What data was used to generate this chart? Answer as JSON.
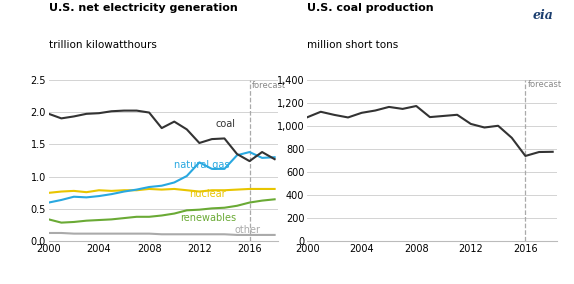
{
  "left_title1": "U.S. net electricity generation",
  "left_title2": "trillion kilowatthours",
  "right_title1": "U.S. coal production",
  "right_title2": "million short tons",
  "years": [
    2000,
    2001,
    2002,
    2003,
    2004,
    2005,
    2006,
    2007,
    2008,
    2009,
    2010,
    2011,
    2012,
    2013,
    2014,
    2015,
    2016,
    2017,
    2018
  ],
  "forecast_year": 2016,
  "left_ylim": [
    0,
    2.5
  ],
  "left_yticks": [
    0.0,
    0.5,
    1.0,
    1.5,
    2.0,
    2.5
  ],
  "right_ylim": [
    0,
    1400
  ],
  "right_yticks": [
    0,
    200,
    400,
    600,
    800,
    1000,
    1200,
    1400
  ],
  "coal_gen": [
    1.97,
    1.9,
    1.93,
    1.97,
    1.98,
    2.01,
    2.02,
    2.02,
    1.99,
    1.75,
    1.85,
    1.73,
    1.52,
    1.58,
    1.59,
    1.35,
    1.24,
    1.38,
    1.27
  ],
  "natural_gas_gen": [
    0.6,
    0.64,
    0.69,
    0.68,
    0.7,
    0.73,
    0.77,
    0.8,
    0.84,
    0.86,
    0.91,
    1.01,
    1.22,
    1.12,
    1.12,
    1.33,
    1.38,
    1.29,
    1.3
  ],
  "nuclear_gen": [
    0.75,
    0.77,
    0.78,
    0.76,
    0.79,
    0.78,
    0.79,
    0.79,
    0.81,
    0.8,
    0.81,
    0.79,
    0.77,
    0.79,
    0.79,
    0.8,
    0.81,
    0.81,
    0.81
  ],
  "renewables_gen": [
    0.34,
    0.29,
    0.3,
    0.32,
    0.33,
    0.34,
    0.36,
    0.38,
    0.38,
    0.4,
    0.43,
    0.48,
    0.49,
    0.51,
    0.52,
    0.55,
    0.6,
    0.63,
    0.65
  ],
  "other_gen": [
    0.13,
    0.13,
    0.12,
    0.12,
    0.12,
    0.12,
    0.12,
    0.12,
    0.12,
    0.11,
    0.11,
    0.11,
    0.11,
    0.11,
    0.11,
    0.1,
    0.1,
    0.1,
    0.1
  ],
  "coal_prod": [
    1073,
    1121,
    1094,
    1072,
    1112,
    1132,
    1163,
    1146,
    1171,
    1075,
    1085,
    1095,
    1016,
    985,
    1000,
    896,
    739,
    773,
    775
  ],
  "coal_gen_color": "#333333",
  "natural_gas_color": "#29a8e0",
  "nuclear_color": "#e8c500",
  "renewables_color": "#6aaa35",
  "other_color": "#aaaaaa",
  "coal_prod_color": "#333333",
  "forecast_line_color": "#aaaaaa",
  "grid_color": "#cccccc",
  "background_color": "#ffffff"
}
